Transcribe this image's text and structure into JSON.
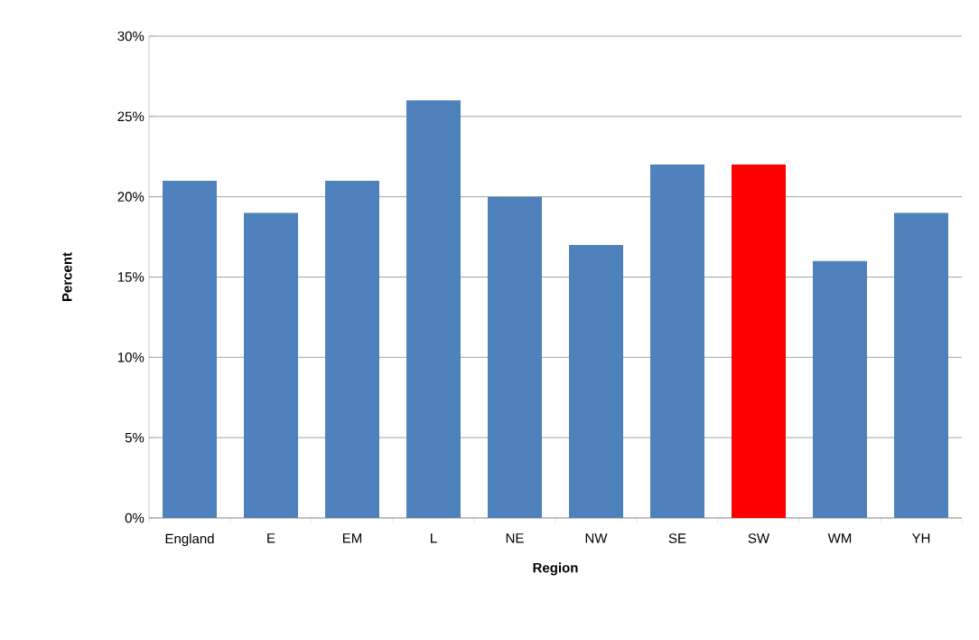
{
  "chart_data": {
    "type": "bar",
    "xlabel": "Region",
    "ylabel": "Percent",
    "categories": [
      "England",
      "E",
      "EM",
      "L",
      "NE",
      "NW",
      "SE",
      "SW",
      "WM",
      "YH"
    ],
    "values": [
      21,
      19,
      21,
      26,
      20,
      17,
      22,
      22,
      16,
      19
    ],
    "colors": [
      "#4f81bd",
      "#4f81bd",
      "#4f81bd",
      "#4f81bd",
      "#4f81bd",
      "#4f81bd",
      "#4f81bd",
      "#ff0000",
      "#4f81bd",
      "#4f81bd"
    ],
    "ylim": [
      0,
      30
    ],
    "yticks": [
      {
        "value": 0,
        "label": "0%"
      },
      {
        "value": 5,
        "label": "5%"
      },
      {
        "value": 10,
        "label": "10%"
      },
      {
        "value": 15,
        "label": "15%"
      },
      {
        "value": 20,
        "label": "20%"
      },
      {
        "value": 25,
        "label": "25%"
      },
      {
        "value": 30,
        "label": "30%"
      }
    ],
    "grid": "y"
  }
}
